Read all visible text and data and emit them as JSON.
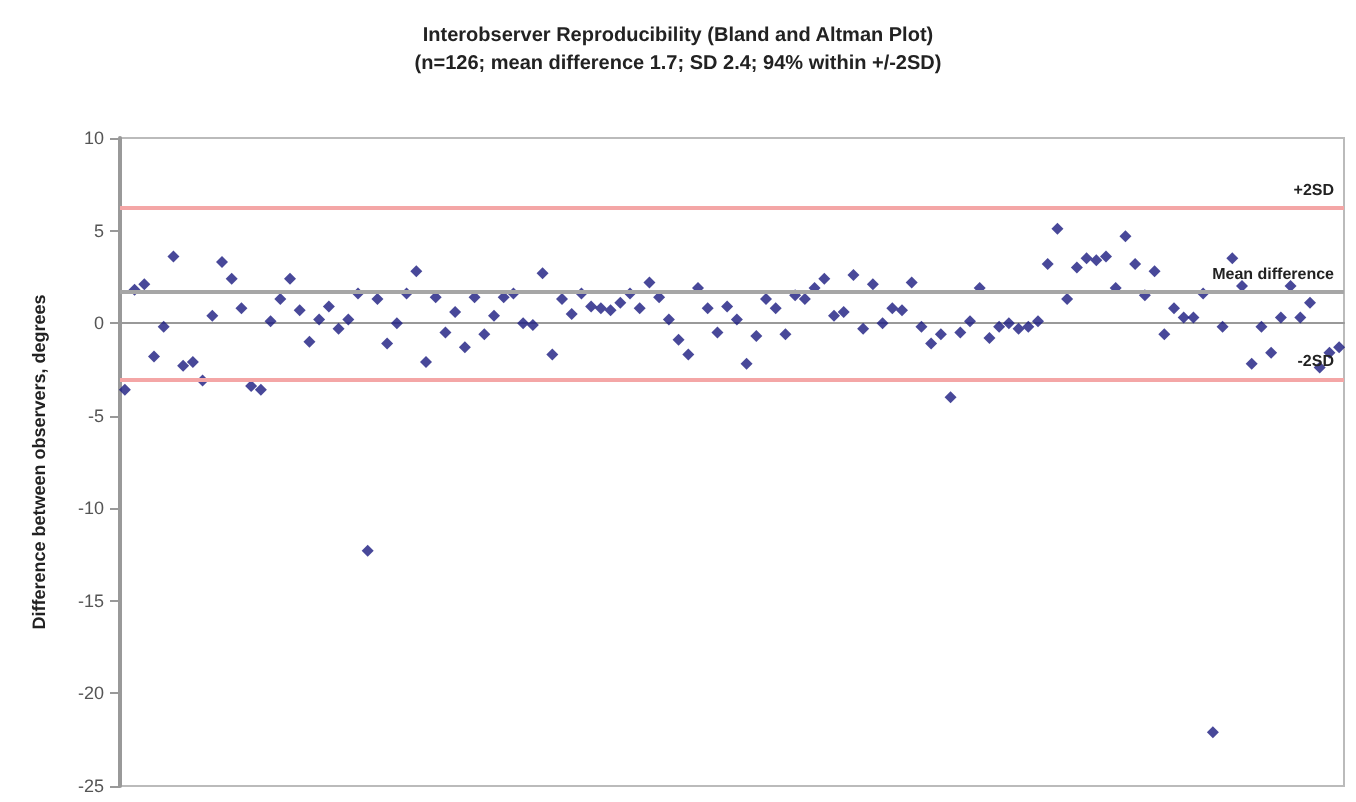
{
  "chart_data": {
    "type": "scatter",
    "title": "Interobserver Reproducibility (Bland and Altman Plot)",
    "subtitle": "(n=126; mean difference 1.7; SD 2.4; 94% within +/-2SD)",
    "ylabel": "Difference between observers, degrees",
    "categories": [
      null,
      null,
      null,
      null,
      null,
      null,
      null,
      null,
      null,
      null,
      null,
      null,
      null,
      null,
      null,
      null,
      null,
      null,
      null,
      null,
      null,
      null,
      null,
      null,
      null,
      null,
      null,
      null,
      null,
      null,
      null,
      null,
      null,
      null,
      null,
      null,
      null,
      null,
      null,
      null,
      null,
      null,
      null,
      null,
      null,
      null,
      null,
      null,
      null,
      null,
      null,
      null,
      null,
      null,
      null,
      null,
      null,
      null,
      null,
      null,
      null,
      null,
      null,
      null,
      null,
      null,
      null,
      null,
      null,
      null,
      null,
      null,
      null,
      null,
      null,
      null,
      null,
      null,
      null,
      null,
      null,
      null,
      null,
      null,
      null,
      null,
      null,
      null,
      null,
      null,
      null,
      null,
      null,
      null,
      null,
      null,
      null,
      null,
      null,
      null,
      null,
      null,
      null,
      null,
      null,
      null,
      null,
      null,
      null,
      null,
      null,
      null,
      null,
      null,
      null,
      null,
      null,
      null,
      null,
      null,
      null,
      null,
      null,
      null,
      null,
      null
    ],
    "series": [
      {
        "color": "#1a1a80",
        "values": [
          -3.6,
          1.8,
          2.1,
          -1.8,
          -0.2,
          3.6,
          -2.3,
          -2.1,
          -3.1,
          0.4,
          3.3,
          2.4,
          0.8,
          -3.4,
          -3.6,
          0.1,
          1.3,
          2.4,
          0.7,
          -1.0,
          0.2,
          0.9,
          -0.3,
          0.2,
          1.6,
          -12.3,
          1.3,
          -1.1,
          0.0,
          1.6,
          2.8,
          -2.1,
          1.4,
          -0.5,
          0.6,
          -1.3,
          1.4,
          -0.6,
          0.4,
          1.4,
          1.6,
          0.0,
          -0.1,
          2.7,
          -1.7,
          1.3,
          0.5,
          1.6,
          0.9,
          0.8,
          0.7,
          1.1,
          1.6,
          0.8,
          2.2,
          1.4,
          0.2,
          -0.9,
          -1.7,
          1.9,
          0.8,
          -0.5,
          0.9,
          0.2,
          -2.2,
          -0.7,
          1.3,
          0.8,
          -0.6,
          1.5,
          1.3,
          1.9,
          2.4,
          0.4,
          0.6,
          2.6,
          -0.3,
          2.1,
          0.0,
          0.8,
          0.7,
          2.2,
          -0.2,
          -1.1,
          -0.6,
          -4.0,
          -0.5,
          0.1,
          1.9,
          -0.8,
          -0.2,
          0.0,
          -0.3,
          -0.2,
          0.1,
          3.2,
          5.1,
          1.3,
          3.0,
          3.5,
          3.4,
          3.6,
          1.9,
          4.7,
          3.2,
          1.5,
          2.8,
          -0.6,
          0.8,
          0.3,
          0.3,
          1.6,
          -22.1,
          -0.2,
          3.5,
          2.0,
          -2.2,
          -0.2,
          -1.6,
          0.3,
          2.0,
          0.3,
          1.1,
          -2.4,
          -1.6,
          -1.3
        ]
      }
    ],
    "ylim": [
      -25,
      10
    ],
    "yticks": [
      -25,
      -20,
      -15,
      -10,
      -5,
      0,
      5,
      10
    ],
    "tick_labels": "y",
    "marker": "diamond",
    "ref_lines": [
      {
        "axis": "y",
        "value": 6.2,
        "label": "+2SD",
        "color": "#f4a6a6"
      },
      {
        "axis": "y",
        "value": 1.7,
        "label": "Mean difference",
        "color": "#a6a6a6"
      },
      {
        "axis": "y",
        "value": -3.0,
        "label": "-2SD",
        "color": "#f4a6a6"
      }
    ]
  }
}
